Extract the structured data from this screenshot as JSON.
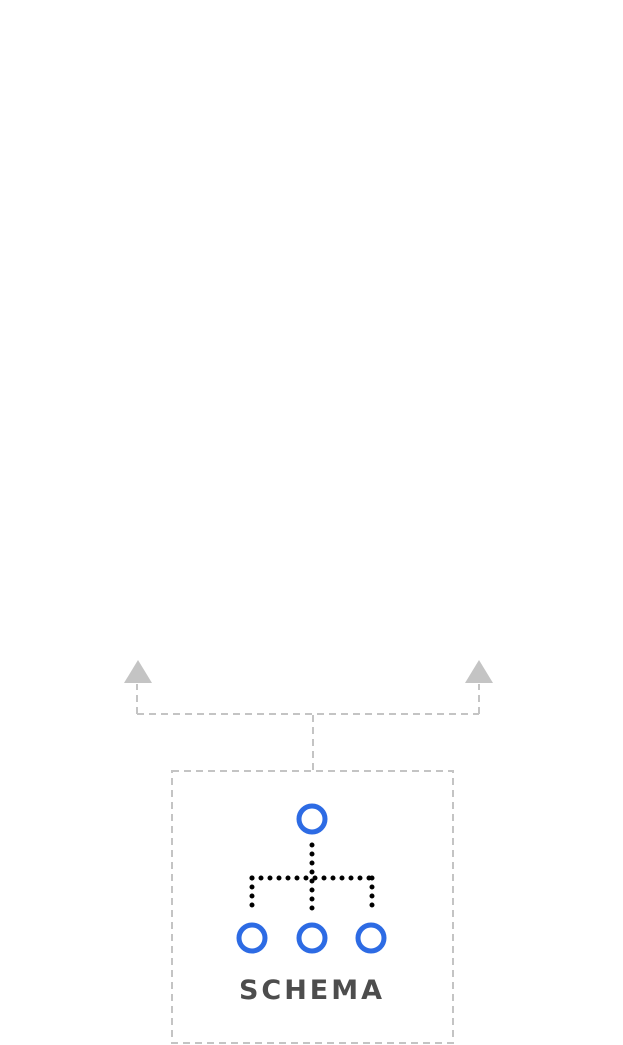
{
  "schema_box": {
    "label": "SCHEMA",
    "icon": "hierarchy-tree-icon"
  },
  "colors": {
    "connector": "#c4c4c4",
    "node_stroke": "#2d6be4",
    "tree_dots": "#000000",
    "label": "#4d4d4d"
  }
}
